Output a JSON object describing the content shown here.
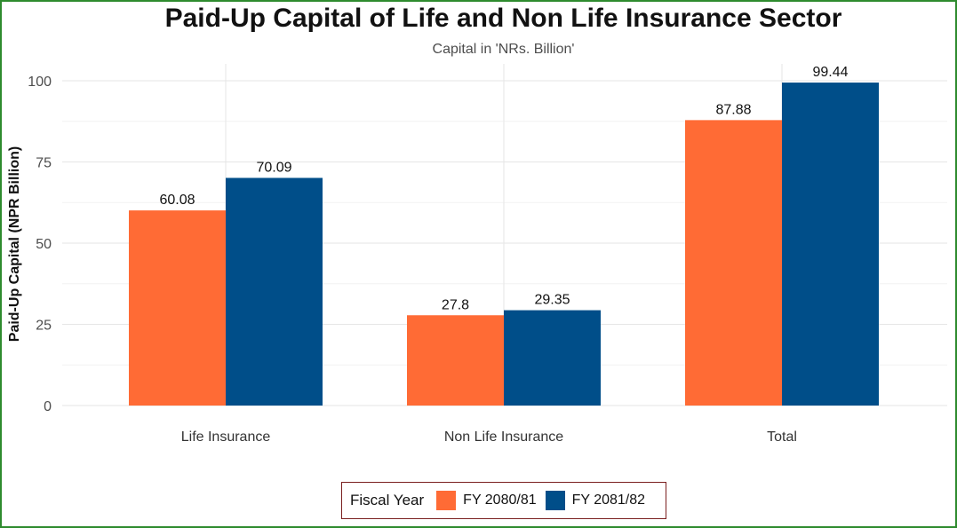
{
  "chart_data": {
    "type": "bar",
    "title": "Paid-Up Capital of Life and Non Life Insurance Sector",
    "subtitle": "Capital in 'NRs. Billion'",
    "xlabel": "",
    "ylabel": "Paid-Up Capital (NPR Billion)",
    "categories": [
      "Life Insurance",
      "Non Life Insurance",
      "Total"
    ],
    "series": [
      {
        "name": "FY 2080/81",
        "values": [
          60.08,
          27.8,
          87.88
        ],
        "labels": [
          "60.08",
          "27.8",
          "87.88"
        ],
        "color": "#ff6b35"
      },
      {
        "name": "FY 2081/82",
        "values": [
          70.09,
          29.35,
          99.44
        ],
        "labels": [
          "70.09",
          "29.35",
          "99.44"
        ],
        "color": "#004e89"
      }
    ],
    "ylim": [
      0,
      100
    ],
    "yticks": [
      0,
      25,
      50,
      75,
      100
    ],
    "ytick_labels": [
      "0",
      "25",
      "50",
      "75",
      "100"
    ],
    "grid": true,
    "legend": {
      "title": "Fiscal Year",
      "position": "bottom"
    }
  }
}
